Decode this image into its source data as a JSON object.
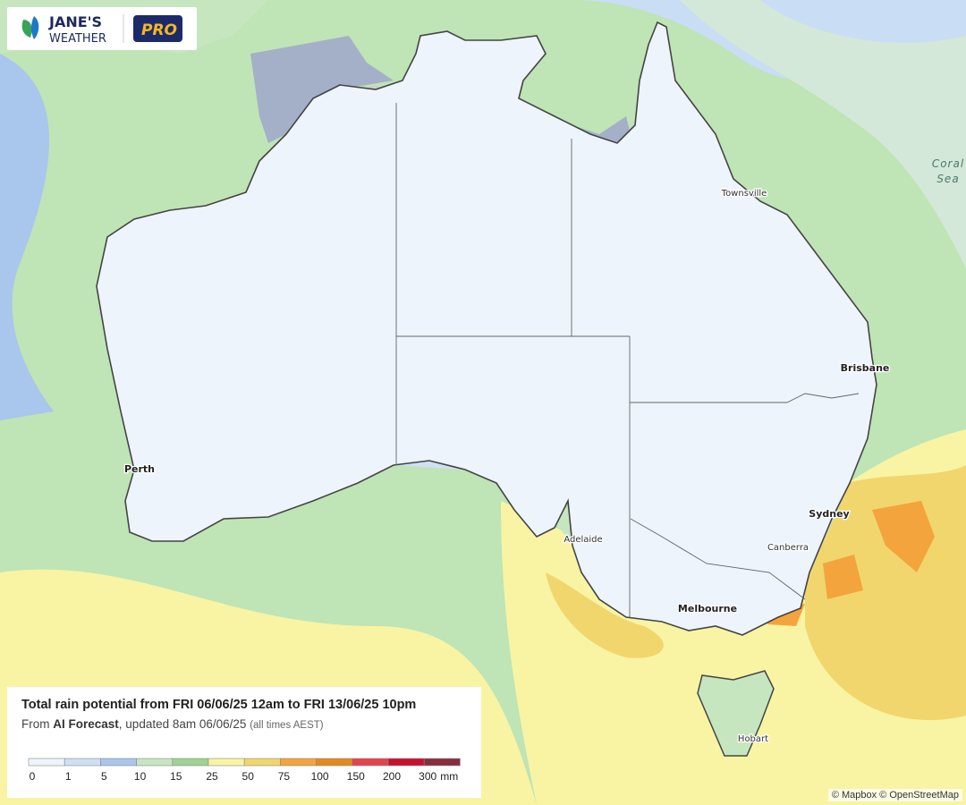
{
  "logo": {
    "brand_line1": "JANE'S",
    "brand_line2": "WEATHER",
    "badge": "PRO"
  },
  "places": {
    "townsville": "Townsville",
    "brisbane": "Brisbane",
    "perth": "Perth",
    "sydney": "Sydney",
    "canberra": "Canberra",
    "adelaide": "Adelaide",
    "melbourne": "Melbourne",
    "hobart": "Hobart",
    "coral_sea": [
      "Coral",
      "Sea"
    ]
  },
  "legend": {
    "title": "Total rain potential from FRI 06/06/25 12am to FRI 13/06/25 10pm",
    "from": "From",
    "source": "AI Forecast",
    "updated": ", updated 8am 06/06/25",
    "note": "(all times AEST)",
    "ticks": [
      "0",
      "1",
      "5",
      "10",
      "15",
      "25",
      "50",
      "75",
      "100",
      "150",
      "200",
      "300"
    ],
    "unit": "mm",
    "colors": [
      "#eef4fc",
      "#cfe0f5",
      "#a9c6ec",
      "#c6e6c0",
      "#9ed393",
      "#f8f4a4",
      "#f1d66e",
      "#f4a43c",
      "#e5891d",
      "#e6424c",
      "#c8102e",
      "#8a2b3e"
    ]
  },
  "attribution": "© Mapbox © OpenStreetMap"
}
